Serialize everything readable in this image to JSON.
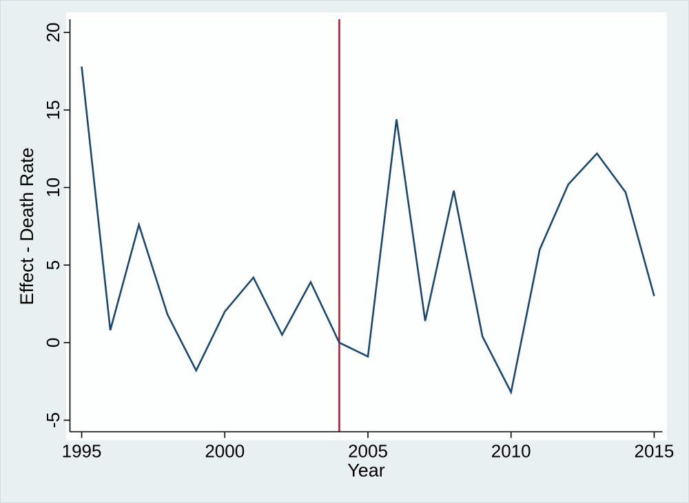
{
  "figure": {
    "background_color": "#e9f0f2",
    "plot_background_color": "#fdfefe",
    "axis_color": "#000000",
    "series_line_color": "#1a476f",
    "vline_color": "#cc1428",
    "tick_font_size": 26,
    "label_font_size": 27
  },
  "chart_data": {
    "type": "line",
    "title": "",
    "xlabel": "Year",
    "ylabel": "Effect - Death Rate",
    "x": [
      1995,
      1996,
      1997,
      1998,
      1999,
      2000,
      2001,
      2002,
      2003,
      2004,
      2005,
      2006,
      2007,
      2008,
      2009,
      2010,
      2011,
      2012,
      2013,
      2014,
      2015
    ],
    "series": [
      {
        "name": "Effect - Death Rate",
        "values": [
          17.8,
          0.8,
          7.6,
          1.8,
          -1.8,
          2.0,
          4.2,
          0.5,
          3.9,
          0.0,
          -0.9,
          14.4,
          1.4,
          9.8,
          0.4,
          -3.2,
          6.0,
          10.2,
          12.2,
          9.7,
          3.0
        ]
      }
    ],
    "xticks": [
      1995,
      2000,
      2005,
      2010,
      2015
    ],
    "yticks": [
      -5,
      0,
      5,
      10,
      15,
      20
    ],
    "xtick_labels": [
      "1995",
      "2000",
      "2005",
      "2010",
      "2015"
    ],
    "ytick_labels": [
      "-5",
      "0",
      "5",
      "10",
      "15",
      "20"
    ],
    "xlim": [
      1994.59,
      2015.29
    ],
    "ylim": [
      -5.75,
      20.85
    ],
    "vline_x": 2004,
    "grid": false,
    "legend_position": "none",
    "ytick_label_angle": -90,
    "notes": "red vertical reference line at year 2004"
  }
}
